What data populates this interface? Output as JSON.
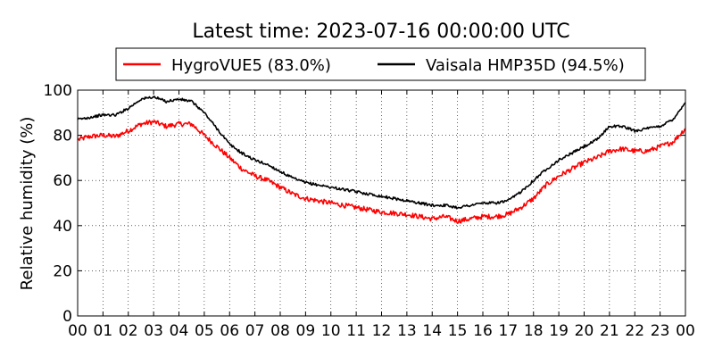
{
  "chart_data": {
    "type": "line",
    "title": "Latest time: 2023-07-16 00:00:00 UTC",
    "xlabel": "",
    "ylabel": "Relative humidity (%)",
    "x_ticks": [
      "00",
      "01",
      "02",
      "03",
      "04",
      "05",
      "06",
      "07",
      "08",
      "09",
      "10",
      "11",
      "12",
      "13",
      "14",
      "15",
      "16",
      "17",
      "18",
      "19",
      "20",
      "21",
      "22",
      "23",
      "00"
    ],
    "x_range_hours": [
      0,
      24
    ],
    "ylim": [
      0,
      100
    ],
    "y_ticks": [
      0,
      20,
      40,
      60,
      80,
      100
    ],
    "grid": true,
    "legend_position": "top-center",
    "x_hours": [
      0,
      0.5,
      1,
      1.5,
      2,
      2.5,
      3,
      3.5,
      4,
      4.5,
      5,
      5.5,
      6,
      6.5,
      7,
      7.5,
      8,
      8.5,
      9,
      9.5,
      10,
      10.5,
      11,
      11.5,
      12,
      12.5,
      13,
      13.5,
      14,
      14.5,
      15,
      15.5,
      16,
      16.5,
      17,
      17.5,
      18,
      18.5,
      19,
      19.5,
      20,
      20.5,
      21,
      21.5,
      22,
      22.5,
      23,
      23.5,
      24
    ],
    "series": [
      {
        "name": "HygroVUE5 (83.0%)",
        "color": "#ff0000",
        "values": [
          78,
          79.5,
          80,
          79.5,
          82,
          85,
          86,
          84,
          85,
          85,
          80,
          75,
          70,
          65,
          62,
          60,
          57,
          54,
          52,
          51,
          50,
          49,
          48,
          47,
          46,
          45.5,
          45,
          44,
          43,
          44,
          42,
          43,
          44,
          44,
          45,
          48,
          52,
          58,
          62,
          65,
          68,
          70,
          73,
          74,
          73,
          73,
          75,
          77,
          83
        ]
      },
      {
        "name": "Vaisala HMP35D (94.5%)",
        "color": "#000000",
        "values": [
          87,
          88,
          89,
          89,
          92,
          96,
          97,
          95,
          96,
          95,
          90,
          83,
          76,
          72,
          69,
          67,
          64,
          61,
          59,
          58,
          57,
          56,
          55,
          54,
          53,
          52,
          51,
          50,
          49,
          49,
          48,
          49,
          50,
          50,
          51,
          55,
          60,
          65,
          69,
          72,
          75,
          78,
          84,
          84,
          82,
          83,
          84,
          87,
          94.5
        ]
      }
    ]
  }
}
